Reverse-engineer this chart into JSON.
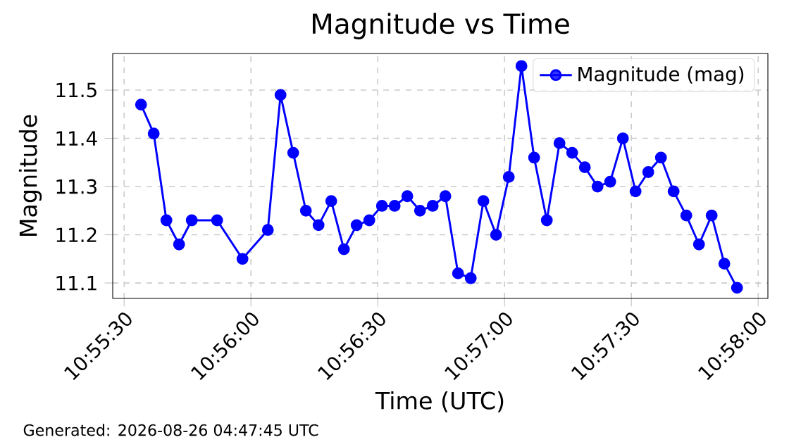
{
  "chart_data": {
    "type": "line",
    "title": "Magnitude vs Time",
    "xlabel": "Time (UTC)",
    "ylabel": "Magnitude",
    "annotations": [
      "Generated: 2026-08-26 04:47:45 UTC"
    ],
    "x": [
      10.926111,
      10.926944,
      10.927778,
      10.928611,
      10.929444,
      10.931111,
      10.932778,
      10.934444,
      10.935278,
      10.936111,
      10.936944,
      10.937778,
      10.938611,
      10.939444,
      10.940278,
      10.941111,
      10.941944,
      10.942778,
      10.943611,
      10.944444,
      10.945278,
      10.946111,
      10.946944,
      10.947778,
      10.948611,
      10.949444,
      10.950278,
      10.951111,
      10.951944,
      10.952778,
      10.953611,
      10.954444,
      10.955278,
      10.956111,
      10.956944,
      10.957778,
      10.958611,
      10.959444,
      10.960278,
      10.961111,
      10.961944,
      10.962778,
      10.963611,
      10.964444,
      10.965278
    ],
    "series": [
      {
        "name": "Magnitude (mag)",
        "color": "#0000ff",
        "values": [
          11.47,
          11.41,
          11.23,
          11.18,
          11.23,
          11.23,
          11.15,
          11.21,
          11.49,
          11.37,
          11.25,
          11.22,
          11.27,
          11.17,
          11.22,
          11.23,
          11.26,
          11.26,
          11.28,
          11.25,
          11.26,
          11.28,
          11.12,
          11.11,
          11.27,
          11.2,
          11.32,
          11.55,
          11.36,
          11.23,
          11.39,
          11.37,
          11.34,
          11.3,
          11.31,
          11.4,
          11.29,
          11.33,
          11.36,
          11.29,
          11.24,
          11.18,
          11.24,
          11.14,
          11.09
        ]
      }
    ],
    "xlim": [
      10.92425,
      10.967306
    ],
    "ylim": [
      11.068,
      11.576
    ],
    "xticks": [
      {
        "value": 10.925,
        "label": "10:55:30"
      },
      {
        "value": 10.933333,
        "label": "10:56:00"
      },
      {
        "value": 10.941667,
        "label": "10:56:30"
      },
      {
        "value": 10.95,
        "label": "10:57:00"
      },
      {
        "value": 10.958333,
        "label": "10:57:30"
      },
      {
        "value": 10.966667,
        "label": "10:58:00"
      }
    ],
    "yticks": [
      11.1,
      11.2,
      11.3,
      11.4,
      11.5
    ],
    "grid": true,
    "legend": "top right",
    "marker": "circle",
    "line_style": "solid"
  }
}
